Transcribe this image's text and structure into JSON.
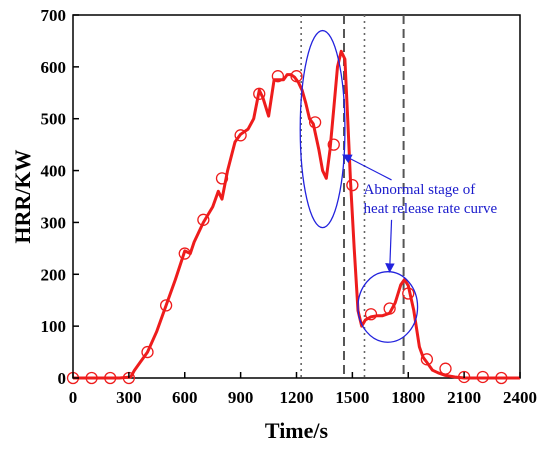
{
  "chart_data": {
    "type": "line",
    "title": "",
    "xlabel": "Time/s",
    "ylabel": "HRR/KW",
    "xlim": [
      0,
      2400
    ],
    "ylim": [
      0,
      700
    ],
    "xticks": [
      0,
      300,
      600,
      900,
      1200,
      1500,
      1800,
      2100,
      2400
    ],
    "yticks": [
      0,
      100,
      200,
      300,
      400,
      500,
      600,
      700
    ],
    "grid": false,
    "line_color": "#ee1c1c",
    "annotation_color": "#2222dd",
    "series": [
      {
        "name": "",
        "x": [
          0,
          150,
          250,
          310,
          330,
          360,
          400,
          450,
          500,
          550,
          600,
          630,
          650,
          700,
          750,
          780,
          800,
          830,
          870,
          900,
          940,
          970,
          1000,
          1020,
          1050,
          1080,
          1100,
          1130,
          1150,
          1170,
          1190,
          1210,
          1230,
          1250,
          1270,
          1290,
          1320,
          1340,
          1360,
          1380,
          1400,
          1420,
          1440,
          1460,
          1475,
          1490,
          1510,
          1530,
          1550,
          1570,
          1600,
          1630,
          1660,
          1700,
          1730,
          1760,
          1780,
          1800,
          1830,
          1860,
          1880,
          1900,
          1930,
          1960,
          2000,
          2050,
          2100,
          2200,
          2300,
          2400
        ],
        "y": [
          0,
          0,
          0,
          2,
          15,
          30,
          50,
          90,
          140,
          190,
          245,
          240,
          262,
          300,
          330,
          360,
          345,
          400,
          455,
          470,
          480,
          500,
          555,
          540,
          505,
          575,
          575,
          575,
          585,
          585,
          580,
          570,
          555,
          530,
          500,
          490,
          440,
          400,
          385,
          440,
          520,
          600,
          630,
          615,
          500,
          380,
          250,
          130,
          100,
          112,
          118,
          120,
          120,
          125,
          145,
          180,
          190,
          178,
          130,
          60,
          40,
          30,
          15,
          10,
          5,
          2,
          0,
          0,
          0,
          0
        ]
      }
    ],
    "markers": {
      "x": [
        0,
        100,
        200,
        300,
        400,
        500,
        600,
        700,
        800,
        900,
        1000,
        1100,
        1200,
        1300,
        1400,
        1500,
        1600,
        1700,
        1800,
        1900,
        2000,
        2100,
        2200,
        2300
      ],
      "y": [
        0,
        0,
        0,
        0,
        50,
        140,
        240,
        305,
        385,
        468,
        548,
        582,
        582,
        493,
        450,
        372,
        123,
        134,
        163,
        36,
        18,
        2,
        2,
        0
      ]
    },
    "vertical_lines": [
      {
        "x": 1225,
        "style": "dotted"
      },
      {
        "x": 1455,
        "style": "dashed"
      },
      {
        "x": 1565,
        "style": "dotted"
      },
      {
        "x": 1775,
        "style": "dashed"
      }
    ],
    "ellipses": [
      {
        "cx": 1340,
        "cy": 480,
        "rx": 120,
        "ry": 190
      },
      {
        "cx": 1690,
        "cy": 137,
        "rx": 160,
        "ry": 68
      }
    ],
    "annotations": [
      {
        "lines": [
          "Abnormal stage of",
          "heat release rate curve"
        ],
        "x": 1560,
        "y": 355,
        "arrows_to": [
          [
            1450,
            430
          ],
          [
            1700,
            205
          ]
        ]
      }
    ]
  }
}
